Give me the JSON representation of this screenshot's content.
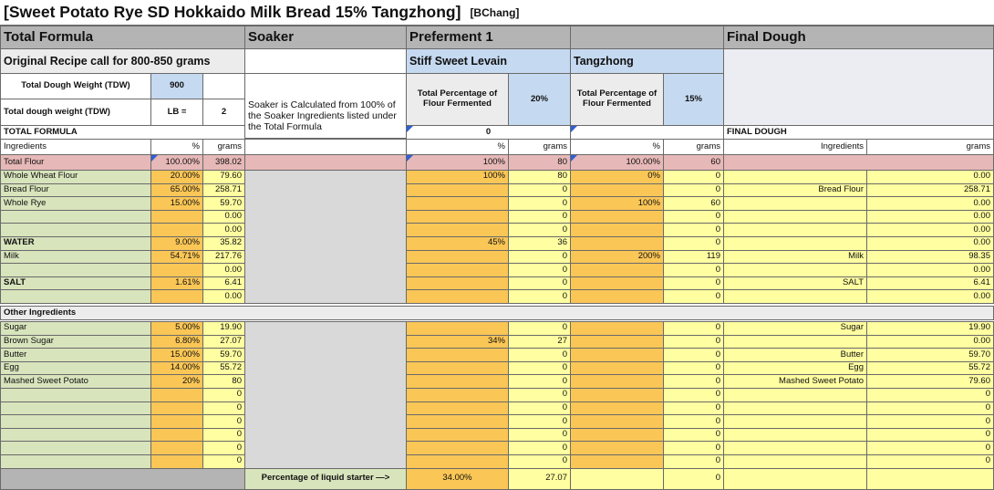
{
  "title": "[Sweet Potato Rye SD Hokkaido Milk Bread 15% Tangzhong]",
  "author": "[BChang]",
  "sections": {
    "total_formula": "Total Formula",
    "soaker": "Soaker",
    "preferment": "Preferment 1",
    "final_dough": "Final Dough",
    "stiff_levain": "Stiff Sweet Levain",
    "tangzhong": "Tangzhong"
  },
  "recipe_note": "Original Recipe call for 800-850 grams",
  "tdw": {
    "label": "Total Dough Weight (TDW)",
    "value": "900"
  },
  "tdw_lb": {
    "label": "Total dough weight (TDW)",
    "unit": "LB =",
    "value": "2"
  },
  "soaker_note": "Soaker is Calculated from 100% of the Soaker Ingredients listed under the Total Formula",
  "total_pct_label": "Total Percentage of Flour Fermented",
  "levain_pct": "20%",
  "tangzhong_pct": "15%",
  "levain_zero": "0",
  "total_formula_label": "TOTAL FORMULA",
  "final_dough_label": "FINAL DOUGH",
  "headers": {
    "ingredients": "Ingredients",
    "pct": "%",
    "grams": "grams"
  },
  "total_flour": {
    "name": "Total Flour",
    "pct": "100.00%",
    "grams": "398.02",
    "lev_pct": "100%",
    "lev_g": "80",
    "tz_pct": "100.00%",
    "tz_g": "60"
  },
  "rows": [
    {
      "name": "Whole Wheat Flour",
      "pct": "20.00%",
      "grams": "79.60",
      "lev_pct": "100%",
      "lev_g": "80",
      "tz_pct": "0%",
      "tz_g": "0",
      "fd_name": "",
      "fd_g": "0.00"
    },
    {
      "name": "Bread Flour",
      "pct": "65.00%",
      "grams": "258.71",
      "lev_pct": "",
      "lev_g": "0",
      "tz_pct": "",
      "tz_g": "0",
      "fd_name": "Bread Flour",
      "fd_g": "258.71"
    },
    {
      "name": "Whole Rye",
      "pct": "15.00%",
      "grams": "59.70",
      "lev_pct": "",
      "lev_g": "0",
      "tz_pct": "100%",
      "tz_g": "60",
      "fd_name": "",
      "fd_g": "0.00"
    },
    {
      "name": "",
      "pct": "",
      "grams": "0.00",
      "lev_pct": "",
      "lev_g": "0",
      "tz_pct": "",
      "tz_g": "0",
      "fd_name": "",
      "fd_g": "0.00"
    },
    {
      "name": "",
      "pct": "",
      "grams": "0.00",
      "lev_pct": "",
      "lev_g": "0",
      "tz_pct": "",
      "tz_g": "0",
      "fd_name": "",
      "fd_g": "0.00"
    },
    {
      "name": "WATER",
      "pct": "9.00%",
      "grams": "35.82",
      "lev_pct": "45%",
      "lev_g": "36",
      "tz_pct": "",
      "tz_g": "0",
      "fd_name": "",
      "fd_g": "0.00"
    },
    {
      "name": "Milk",
      "pct": "54.71%",
      "grams": "217.76",
      "lev_pct": "",
      "lev_g": "0",
      "tz_pct": "200%",
      "tz_g": "119",
      "fd_name": "Milk",
      "fd_g": "98.35"
    },
    {
      "name": "",
      "pct": "",
      "grams": "0.00",
      "lev_pct": "",
      "lev_g": "0",
      "tz_pct": "",
      "tz_g": "0",
      "fd_name": "",
      "fd_g": "0.00"
    },
    {
      "name": "SALT",
      "pct": "1.61%",
      "grams": "6.41",
      "lev_pct": "",
      "lev_g": "0",
      "tz_pct": "",
      "tz_g": "0",
      "fd_name": "SALT",
      "fd_g": "6.41"
    },
    {
      "name": "",
      "pct": "",
      "grams": "0.00",
      "lev_pct": "",
      "lev_g": "0",
      "tz_pct": "",
      "tz_g": "0",
      "fd_name": "",
      "fd_g": "0.00"
    }
  ],
  "other_ingredients": "Other Ingredients",
  "other_rows": [
    {
      "name": "Sugar",
      "pct": "5.00%",
      "grams": "19.90",
      "lev_pct": "",
      "lev_g": "0",
      "tz_pct": "",
      "tz_g": "0",
      "fd_name": "Sugar",
      "fd_g": "19.90"
    },
    {
      "name": "Brown Sugar",
      "pct": "6.80%",
      "grams": "27.07",
      "lev_pct": "34%",
      "lev_g": "27",
      "tz_pct": "",
      "tz_g": "0",
      "fd_name": "",
      "fd_g": "0.00"
    },
    {
      "name": "Butter",
      "pct": "15.00%",
      "grams": "59.70",
      "lev_pct": "",
      "lev_g": "0",
      "tz_pct": "",
      "tz_g": "0",
      "fd_name": "Butter",
      "fd_g": "59.70"
    },
    {
      "name": "Egg",
      "pct": "14.00%",
      "grams": "55.72",
      "lev_pct": "",
      "lev_g": "0",
      "tz_pct": "",
      "tz_g": "0",
      "fd_name": "Egg",
      "fd_g": "55.72"
    },
    {
      "name": "Mashed Sweet Potato",
      "pct": "20%",
      "grams": "80",
      "lev_pct": "",
      "lev_g": "0",
      "tz_pct": "",
      "tz_g": "0",
      "fd_name": "Mashed Sweet Potato",
      "fd_g": "79.60"
    },
    {
      "name": "",
      "pct": "",
      "grams": "0",
      "lev_pct": "",
      "lev_g": "0",
      "tz_pct": "",
      "tz_g": "0",
      "fd_name": "",
      "fd_g": "0"
    },
    {
      "name": "",
      "pct": "",
      "grams": "0",
      "lev_pct": "",
      "lev_g": "0",
      "tz_pct": "",
      "tz_g": "0",
      "fd_name": "",
      "fd_g": "0"
    },
    {
      "name": "",
      "pct": "",
      "grams": "0",
      "lev_pct": "",
      "lev_g": "0",
      "tz_pct": "",
      "tz_g": "0",
      "fd_name": "",
      "fd_g": "0"
    },
    {
      "name": "",
      "pct": "",
      "grams": "0",
      "lev_pct": "",
      "lev_g": "0",
      "tz_pct": "",
      "tz_g": "0",
      "fd_name": "",
      "fd_g": "0"
    },
    {
      "name": "",
      "pct": "",
      "grams": "0",
      "lev_pct": "",
      "lev_g": "0",
      "tz_pct": "",
      "tz_g": "0",
      "fd_name": "",
      "fd_g": "0"
    },
    {
      "name": "",
      "pct": "",
      "grams": "0",
      "lev_pct": "",
      "lev_g": "0",
      "tz_pct": "",
      "tz_g": "0",
      "fd_name": "",
      "fd_g": "0"
    }
  ],
  "liquid_starter": {
    "label": "Percentage of liquid starter —>",
    "pct": "34.00%",
    "grams": "27.07",
    "tz_g": "0"
  },
  "colors": {
    "gray_header": "#b4b4b4",
    "light_gray": "#ececec",
    "green": "#d8e4bc",
    "orange": "#fac656",
    "yellow": "#fffea0",
    "blue": "#c5d9f1",
    "pink": "#e6b8b7",
    "soaker_gray": "#d9d9d9",
    "lavender": "#ececf3"
  }
}
